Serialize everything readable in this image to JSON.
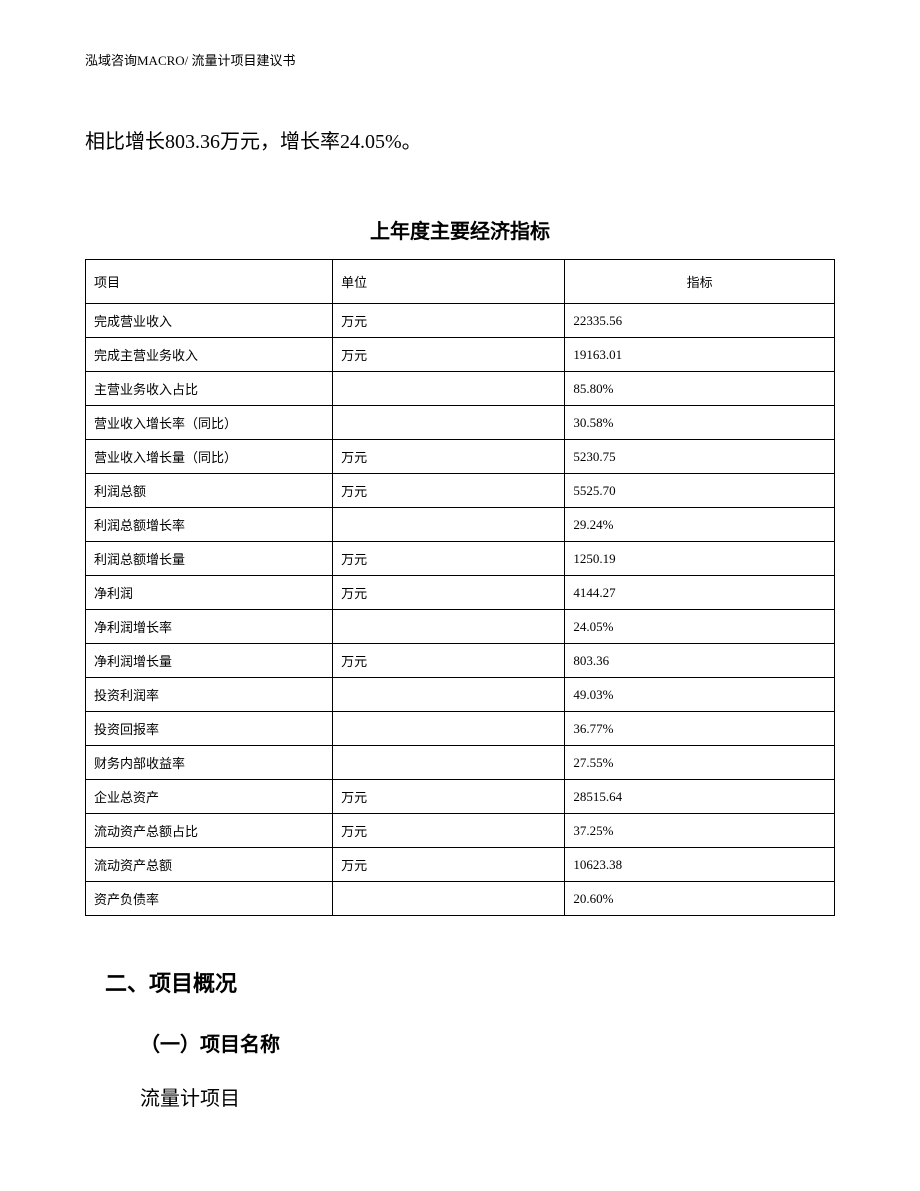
{
  "header": "泓域咨询MACRO/ 流量计项目建议书",
  "intro_text": "相比增长803.36万元，增长率24.05%。",
  "table_title": "上年度主要经济指标",
  "table": {
    "headers": {
      "item": "项目",
      "unit": "单位",
      "value": "指标"
    },
    "rows": [
      {
        "item": "完成营业收入",
        "unit": "万元",
        "value": "22335.56"
      },
      {
        "item": "完成主营业务收入",
        "unit": "万元",
        "value": "19163.01"
      },
      {
        "item": "主营业务收入占比",
        "unit": "",
        "value": "85.80%"
      },
      {
        "item": "营业收入增长率（同比）",
        "unit": "",
        "value": "30.58%"
      },
      {
        "item": "营业收入增长量（同比）",
        "unit": "万元",
        "value": "5230.75"
      },
      {
        "item": "利润总额",
        "unit": "万元",
        "value": "5525.70"
      },
      {
        "item": "利润总额增长率",
        "unit": "",
        "value": "29.24%"
      },
      {
        "item": "利润总额增长量",
        "unit": "万元",
        "value": "1250.19"
      },
      {
        "item": "净利润",
        "unit": "万元",
        "value": "4144.27"
      },
      {
        "item": "净利润增长率",
        "unit": "",
        "value": "24.05%"
      },
      {
        "item": "净利润增长量",
        "unit": "万元",
        "value": "803.36"
      },
      {
        "item": "投资利润率",
        "unit": "",
        "value": "49.03%"
      },
      {
        "item": "投资回报率",
        "unit": "",
        "value": "36.77%"
      },
      {
        "item": "财务内部收益率",
        "unit": "",
        "value": "27.55%"
      },
      {
        "item": "企业总资产",
        "unit": "万元",
        "value": "28515.64"
      },
      {
        "item": "流动资产总额占比",
        "unit": "万元",
        "value": "37.25%"
      },
      {
        "item": "流动资产总额",
        "unit": "万元",
        "value": "10623.38"
      },
      {
        "item": "资产负债率",
        "unit": "",
        "value": "20.60%"
      }
    ]
  },
  "section_heading": "二、项目概况",
  "subsection_heading": "（一）项目名称",
  "body_text": "流量计项目"
}
